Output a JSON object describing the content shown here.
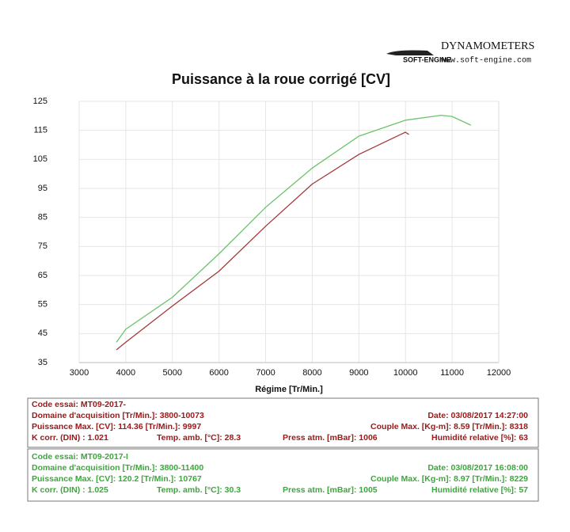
{
  "chart_data": {
    "type": "line",
    "title": "Puissance à la roue corrigé [CV]",
    "x_label": "Régime [Tr/Min.]",
    "xlim": [
      3000,
      12000
    ],
    "xticks": [
      3000,
      4000,
      5000,
      6000,
      7000,
      8000,
      9000,
      10000,
      11000,
      12000
    ],
    "ylim": [
      35,
      125
    ],
    "yticks": [
      35,
      45,
      55,
      65,
      75,
      85,
      95,
      105,
      115,
      125
    ],
    "grid": true,
    "series": [
      {
        "color": "#a33a3a",
        "x": [
          3800,
          4000,
          5000,
          6000,
          7000,
          8000,
          9000,
          9997,
          10073
        ],
        "values": [
          39.4,
          42,
          54.5,
          66.5,
          82,
          96.5,
          106.7,
          114.36,
          113.6
        ]
      },
      {
        "color": "#6cc36c",
        "x": [
          3800,
          4000,
          5000,
          6000,
          7000,
          8000,
          9000,
          10000,
          10767,
          11000,
          11400
        ],
        "values": [
          42,
          46.5,
          57.5,
          72.5,
          88.5,
          102,
          113,
          118.5,
          120.2,
          119.8,
          116.8
        ]
      }
    ]
  },
  "logo": {
    "brand": "DYNAMOMETERS",
    "maker": "SOFT-ENGINE",
    "url": "www.soft-engine.com"
  },
  "runs": [
    {
      "color": "#a01818",
      "code": "Code essai: MT09-2017-",
      "domaine": "Domaine d'acquisition [Tr/Min.]: 3800-10073",
      "date": "Date: 03/08/2017   14:27:00",
      "puissance": "Puissance Max. [CV]: 114.36   [Tr/Min.]: 9997",
      "couple": "Couple Max. [Kg-m]: 8.59   [Tr/Min.]: 8318",
      "kcorr": "K corr. (DIN) : 1.021",
      "temp": "Temp. amb. [°C]: 28.3",
      "press": "Press atm. [mBar]: 1006",
      "humidite": "Humidité relative [%]: 63"
    },
    {
      "color": "#3aa83a",
      "code": "Code essai: MT09-2017-I",
      "domaine": "Domaine d'acquisition [Tr/Min.]: 3800-11400",
      "date": "Date: 03/08/2017   16:08:00",
      "puissance": "Puissance Max. [CV]: 120.2   [Tr/Min.]: 10767",
      "couple": "Couple Max. [Kg-m]: 8.97   [Tr/Min.]: 8229",
      "kcorr": "K corr. (DIN) : 1.025",
      "temp": "Temp. amb. [°C]: 30.3",
      "press": "Press atm. [mBar]: 1005",
      "humidite": "Humidité relative [%]: 57"
    }
  ]
}
